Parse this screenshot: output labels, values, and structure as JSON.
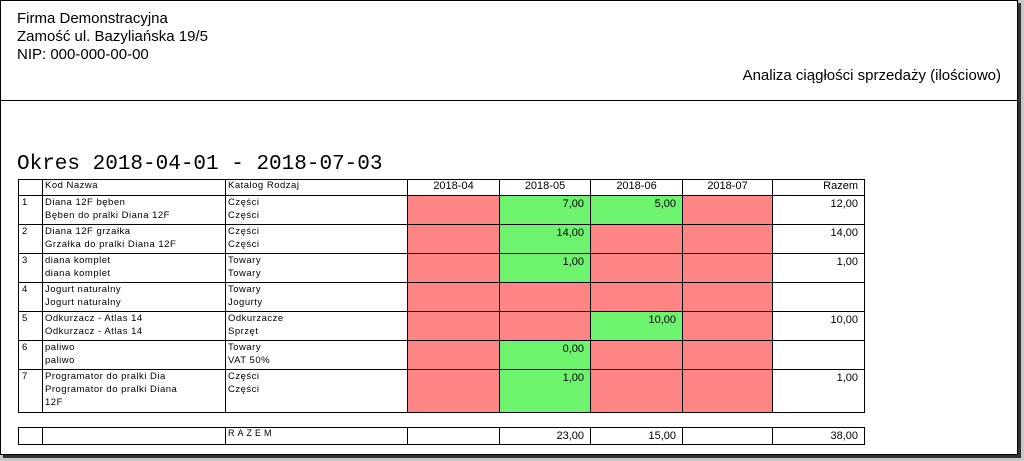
{
  "company": {
    "name": "Firma Demonstracyjna",
    "address": "Zamość ul. Bazyliańska 19/5",
    "nip": "NIP: 000-000-00-00"
  },
  "report_title": "Analiza ciągłości sprzedaży (ilościowo)",
  "period": "Okres 2018-04-01 - 2018-07-03",
  "table": {
    "headers": {
      "kod_nazwa": "Kod  Nazwa",
      "katalog_rodzaj": "Katalog  Rodzaj",
      "months": [
        "2018-04",
        "2018-05",
        "2018-06",
        "2018-07"
      ],
      "razem": "Razem"
    },
    "rows": [
      {
        "idx": "1",
        "kod": "Diana 12F bęben",
        "nazwa": "Bęben do pralki Diana 12F",
        "nazwa2": "",
        "katalog": "Części",
        "rodzaj": "Części",
        "cells": [
          {
            "v": "",
            "s": "red"
          },
          {
            "v": "7,00",
            "s": "green"
          },
          {
            "v": "5,00",
            "s": "green"
          },
          {
            "v": "",
            "s": "red"
          }
        ],
        "razem": "12,00"
      },
      {
        "idx": "2",
        "kod": "Diana 12F grzałka",
        "nazwa": "Grzałka do pralki Diana 12F",
        "nazwa2": "",
        "katalog": "Części",
        "rodzaj": "Części",
        "cells": [
          {
            "v": "",
            "s": "red"
          },
          {
            "v": "14,00",
            "s": "green"
          },
          {
            "v": "",
            "s": "red"
          },
          {
            "v": "",
            "s": "red"
          }
        ],
        "razem": "14,00"
      },
      {
        "idx": "3",
        "kod": "diana komplet",
        "nazwa": "diana komplet",
        "nazwa2": "",
        "katalog": "Towary",
        "rodzaj": "Towary",
        "cells": [
          {
            "v": "",
            "s": "red"
          },
          {
            "v": "1,00",
            "s": "green"
          },
          {
            "v": "",
            "s": "red"
          },
          {
            "v": "",
            "s": "red"
          }
        ],
        "razem": "1,00"
      },
      {
        "idx": "4",
        "kod": "Jogurt naturalny",
        "nazwa": "Jogurt naturalny",
        "nazwa2": "",
        "katalog": "Towary",
        "rodzaj": "Jogurty",
        "cells": [
          {
            "v": "",
            "s": "red"
          },
          {
            "v": "",
            "s": "red"
          },
          {
            "v": "",
            "s": "red"
          },
          {
            "v": "",
            "s": "red"
          }
        ],
        "razem": ""
      },
      {
        "idx": "5",
        "kod": "Odkurzacz - Atlas 14",
        "nazwa": "Odkurzacz - Atlas 14",
        "nazwa2": "",
        "katalog": "Odkurzacze",
        "rodzaj": "Sprzęt",
        "cells": [
          {
            "v": "",
            "s": "red"
          },
          {
            "v": "",
            "s": "red"
          },
          {
            "v": "10,00",
            "s": "green"
          },
          {
            "v": "",
            "s": "red"
          }
        ],
        "razem": "10,00"
      },
      {
        "idx": "6",
        "kod": "paliwo",
        "nazwa": "paliwo",
        "nazwa2": "",
        "katalog": "Towary",
        "rodzaj": "VAT 50%",
        "cells": [
          {
            "v": "",
            "s": "red"
          },
          {
            "v": "0,00",
            "s": "green"
          },
          {
            "v": "",
            "s": "red"
          },
          {
            "v": "",
            "s": "red"
          }
        ],
        "razem": ""
      },
      {
        "idx": "7",
        "kod": "Programator do pralki Dia",
        "nazwa": "Programator do pralki Diana",
        "nazwa2": "12F",
        "katalog": "Części",
        "rodzaj": "Części",
        "cells": [
          {
            "v": "",
            "s": "red"
          },
          {
            "v": "1,00",
            "s": "green"
          },
          {
            "v": "",
            "s": "red"
          },
          {
            "v": "",
            "s": "red"
          }
        ],
        "razem": "1,00"
      }
    ],
    "colors": {
      "missing": "#ff8585",
      "present": "#6ef36e"
    }
  },
  "totals": {
    "label": "RAZEM",
    "months": [
      "",
      "23,00",
      "15,00",
      ""
    ],
    "razem": "38,00"
  }
}
